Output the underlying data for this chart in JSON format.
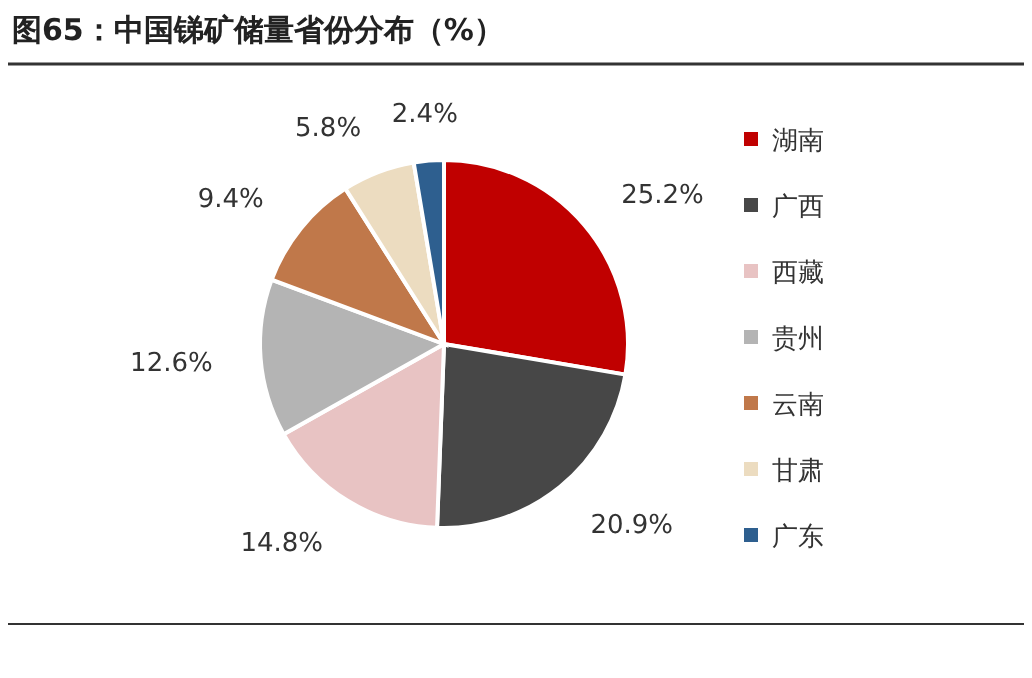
{
  "chart_data": {
    "type": "pie",
    "title": "图65：中国锑矿储量省份分布（%）",
    "categories": [
      "湖南",
      "广西",
      "西藏",
      "贵州",
      "云南",
      "甘肃",
      "广东"
    ],
    "values": [
      25.2,
      20.9,
      14.8,
      12.6,
      9.4,
      5.8,
      2.4
    ],
    "colors": [
      "#c00000",
      "#474747",
      "#e8c3c3",
      "#b4b4b4",
      "#c0784a",
      "#ecdcc0",
      "#2e5f8f"
    ],
    "value_labels": [
      "25.2%",
      "20.9%",
      "14.8%",
      "12.6%",
      "9.4%",
      "5.8%",
      "2.4%"
    ],
    "legend": "right"
  }
}
